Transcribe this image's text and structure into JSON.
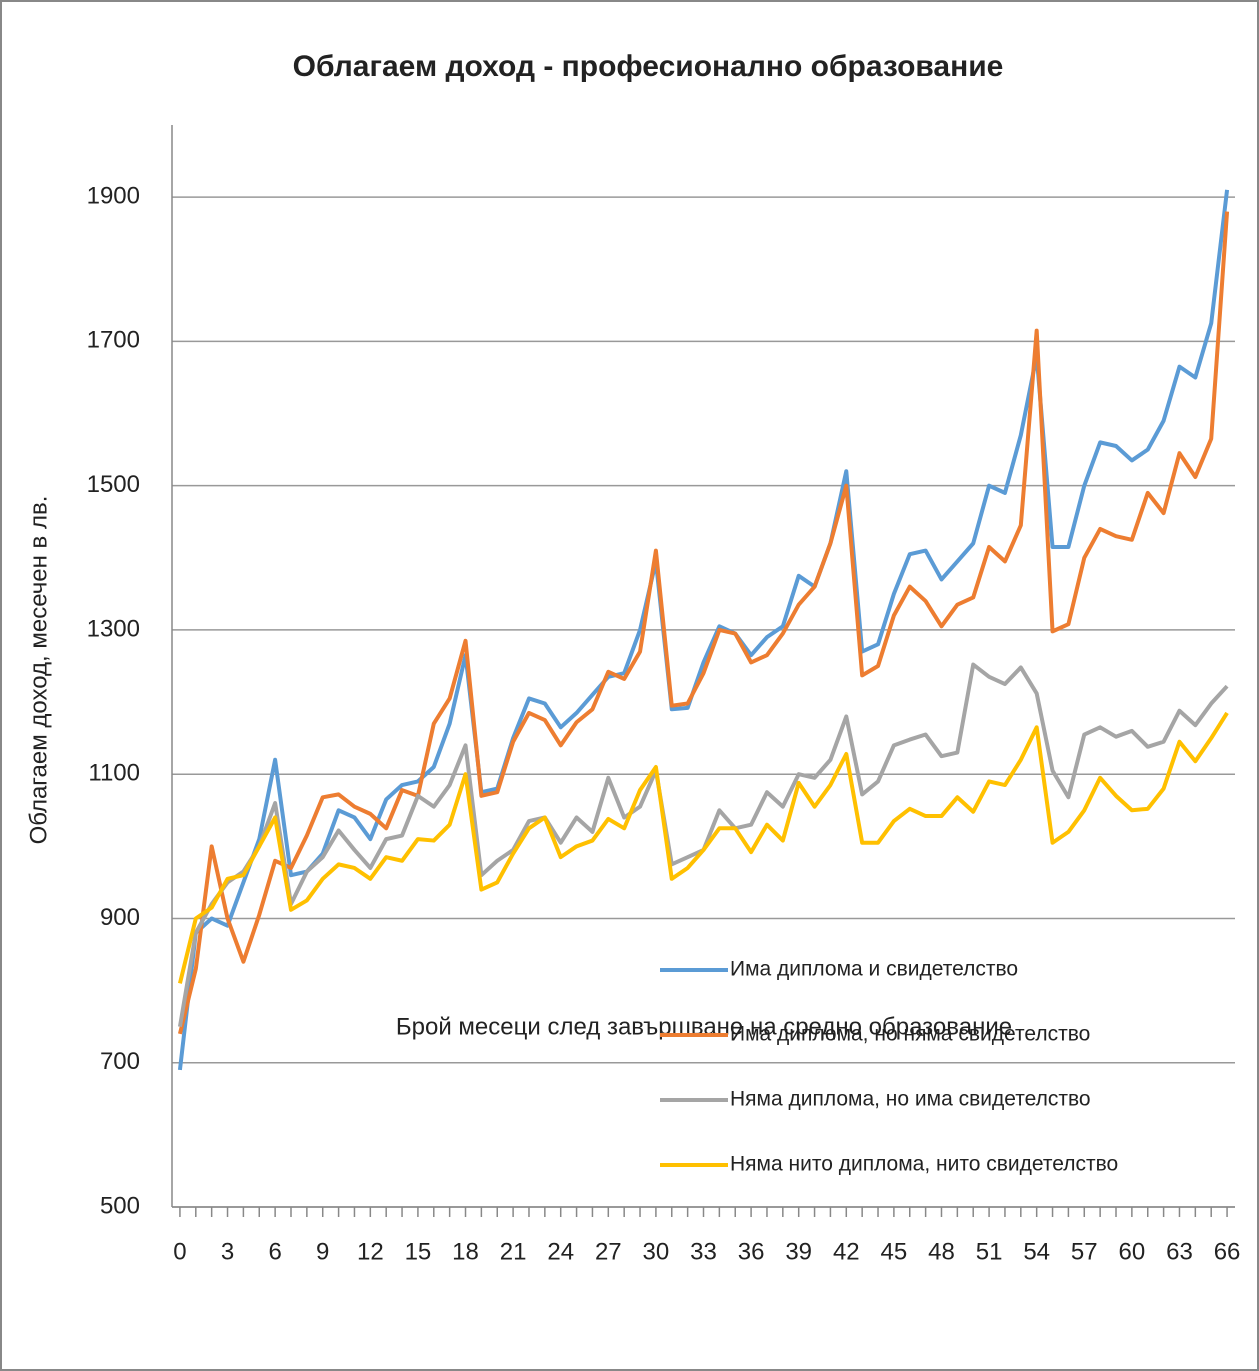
{
  "chart_data": {
    "type": "line",
    "title": "Облагаем доход - професионално образование",
    "xlabel": "Брой месеци след завършване на средно образование",
    "ylabel": "Облагаем доход, месечен в лв.",
    "x": [
      0,
      1,
      2,
      3,
      4,
      5,
      6,
      7,
      8,
      9,
      10,
      11,
      12,
      13,
      14,
      15,
      16,
      17,
      18,
      19,
      20,
      21,
      22,
      23,
      24,
      25,
      26,
      27,
      28,
      29,
      30,
      31,
      32,
      33,
      34,
      35,
      36,
      37,
      38,
      39,
      40,
      41,
      42,
      43,
      44,
      45,
      46,
      47,
      48,
      49,
      50,
      51,
      52,
      53,
      54,
      55,
      56,
      57,
      58,
      59,
      60,
      61,
      62,
      63,
      64,
      65,
      66
    ],
    "xlim": [
      -0.5,
      66.5
    ],
    "xticks": [
      0,
      3,
      6,
      9,
      12,
      15,
      18,
      21,
      24,
      27,
      30,
      33,
      36,
      39,
      42,
      45,
      48,
      51,
      54,
      57,
      60,
      63,
      66
    ],
    "ylim": [
      500,
      2000
    ],
    "yticks": [
      500,
      700,
      900,
      1100,
      1300,
      1500,
      1700,
      1900
    ],
    "grid": true,
    "legend": "lower right",
    "series": [
      {
        "name": "Има диплома и свидетелство",
        "color": "#5b9bd5",
        "values": [
          690,
          880,
          900,
          890,
          950,
          1010,
          1120,
          960,
          965,
          990,
          1050,
          1040,
          1010,
          1065,
          1085,
          1090,
          1110,
          1170,
          1265,
          1075,
          1080,
          1150,
          1205,
          1198,
          1165,
          1185,
          1210,
          1235,
          1240,
          1300,
          1395,
          1190,
          1192,
          1255,
          1305,
          1295,
          1265,
          1290,
          1305,
          1375,
          1360,
          1420,
          1520,
          1270,
          1280,
          1350,
          1405,
          1410,
          1370,
          1395,
          1420,
          1500,
          1490,
          1570,
          1680,
          1415,
          1415,
          1500,
          1560,
          1555,
          1535,
          1550,
          1590,
          1665,
          1650,
          1725,
          1910
        ]
      },
      {
        "name": "Има диплома, но няма свидетелство",
        "color": "#ed7d31",
        "values": [
          740,
          830,
          1000,
          900,
          840,
          905,
          980,
          970,
          1015,
          1068,
          1072,
          1055,
          1045,
          1025,
          1078,
          1070,
          1170,
          1205,
          1285,
          1070,
          1075,
          1145,
          1185,
          1175,
          1140,
          1172,
          1190,
          1242,
          1232,
          1270,
          1410,
          1195,
          1198,
          1240,
          1300,
          1295,
          1255,
          1265,
          1295,
          1335,
          1360,
          1420,
          1500,
          1237,
          1250,
          1320,
          1360,
          1340,
          1305,
          1335,
          1345,
          1415,
          1395,
          1445,
          1715,
          1298,
          1308,
          1400,
          1440,
          1430,
          1425,
          1490,
          1462,
          1545,
          1512,
          1565,
          1880
        ]
      },
      {
        "name": "Няма диплома, но има свидетелство",
        "color": "#a5a5a5",
        "values": [
          750,
          880,
          920,
          950,
          965,
          1000,
          1060,
          920,
          965,
          985,
          1022,
          995,
          970,
          1010,
          1015,
          1070,
          1055,
          1085,
          1140,
          960,
          980,
          995,
          1035,
          1040,
          1005,
          1040,
          1020,
          1095,
          1040,
          1055,
          1105,
          975,
          985,
          995,
          1050,
          1025,
          1030,
          1075,
          1055,
          1100,
          1095,
          1120,
          1180,
          1072,
          1090,
          1140,
          1148,
          1155,
          1125,
          1130,
          1252,
          1235,
          1225,
          1248,
          1212,
          1105,
          1068,
          1155,
          1165,
          1152,
          1160,
          1138,
          1145,
          1188,
          1168,
          1198,
          1222
        ]
      },
      {
        "name": "Няма нито диплома, нито свидетелство",
        "color": "#ffc000",
        "values": [
          810,
          900,
          915,
          955,
          960,
          1000,
          1040,
          912,
          925,
          955,
          975,
          970,
          955,
          985,
          980,
          1010,
          1008,
          1030,
          1100,
          940,
          950,
          990,
          1025,
          1040,
          985,
          1000,
          1008,
          1038,
          1025,
          1078,
          1110,
          955,
          970,
          995,
          1025,
          1025,
          992,
          1030,
          1008,
          1088,
          1055,
          1085,
          1128,
          1005,
          1005,
          1035,
          1052,
          1042,
          1042,
          1068,
          1048,
          1090,
          1085,
          1120,
          1165,
          1005,
          1020,
          1050,
          1095,
          1070,
          1050,
          1052,
          1080,
          1145,
          1118,
          1150,
          1185
        ]
      }
    ]
  }
}
